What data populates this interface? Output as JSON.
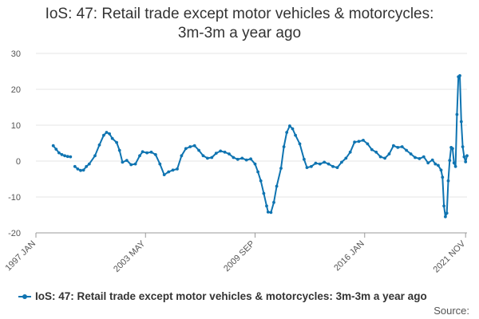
{
  "chart_data": {
    "type": "line",
    "title_lines": [
      "IoS: 47: Retail trade except motor vehicles & motorcycles:",
      "3m-3m a year ago"
    ],
    "x_tick_labels": [
      "1997 JAN",
      "2003 MAY",
      "2009 SEP",
      "2016 JAN",
      "2021 NOV"
    ],
    "y_ticks": [
      30,
      20,
      10,
      0,
      -10,
      -20
    ],
    "ylim": [
      -20,
      30
    ],
    "xlim": [
      "1997-01",
      "2021-12"
    ],
    "grid": "horizontal",
    "legend_position": "bottom",
    "series": [
      {
        "name": "IoS: 47: Retail trade except motor vehicles & motorcycles: 3m-3m a year ago",
        "color": "#0f74b1",
        "segments": [
          [
            [
              "1998-01",
              4.3
            ],
            [
              "1998-03",
              3.3
            ],
            [
              "1998-05",
              2.3
            ],
            [
              "1998-07",
              1.8
            ],
            [
              "1998-09",
              1.5
            ],
            [
              "1998-11",
              1.3
            ],
            [
              "1999-01",
              1.2
            ]
          ],
          [
            [
              "1999-04",
              -1.5
            ],
            [
              "1999-06",
              -2.2
            ],
            [
              "1999-08",
              -2.6
            ],
            [
              "1999-10",
              -2.5
            ],
            [
              "1999-12",
              -1.5
            ],
            [
              "2000-02",
              -0.8
            ],
            [
              "2000-06",
              1.5
            ],
            [
              "2000-09",
              4.5
            ],
            [
              "2000-12",
              7.2
            ],
            [
              "2001-02",
              8.0
            ],
            [
              "2001-04",
              7.6
            ],
            [
              "2001-06",
              6.3
            ],
            [
              "2001-09",
              5.2
            ],
            [
              "2001-11",
              3.0
            ],
            [
              "2002-01",
              -0.3
            ],
            [
              "2002-04",
              0.2
            ],
            [
              "2002-07",
              -1.0
            ],
            [
              "2002-10",
              -0.8
            ],
            [
              "2003-01",
              1.5
            ],
            [
              "2003-03",
              2.6
            ],
            [
              "2003-06",
              2.3
            ],
            [
              "2003-09",
              2.5
            ],
            [
              "2003-12",
              1.8
            ],
            [
              "2004-03",
              -0.8
            ],
            [
              "2004-06",
              -3.8
            ],
            [
              "2004-09",
              -3.0
            ],
            [
              "2004-12",
              -2.5
            ],
            [
              "2005-03",
              -2.2
            ],
            [
              "2005-06",
              1.5
            ],
            [
              "2005-09",
              3.5
            ],
            [
              "2005-12",
              4.0
            ],
            [
              "2006-03",
              4.3
            ],
            [
              "2006-06",
              3.0
            ],
            [
              "2006-09",
              1.5
            ],
            [
              "2006-12",
              0.8
            ],
            [
              "2007-03",
              1.0
            ],
            [
              "2007-06",
              2.2
            ],
            [
              "2007-09",
              2.8
            ],
            [
              "2007-12",
              2.5
            ],
            [
              "2008-03",
              2.0
            ],
            [
              "2008-06",
              1.0
            ],
            [
              "2008-09",
              0.5
            ],
            [
              "2008-12",
              0.8
            ],
            [
              "2009-03",
              0.3
            ],
            [
              "2009-06",
              0.6
            ],
            [
              "2009-09",
              -0.8
            ],
            [
              "2009-11",
              -3.0
            ],
            [
              "2010-01",
              -5.5
            ],
            [
              "2010-03",
              -9.0
            ],
            [
              "2010-05",
              -12.5
            ],
            [
              "2010-06",
              -14.2
            ],
            [
              "2010-08",
              -14.3
            ],
            [
              "2010-10",
              -11.5
            ],
            [
              "2010-12",
              -7.0
            ],
            [
              "2011-03",
              -2.0
            ],
            [
              "2011-05",
              4.0
            ],
            [
              "2011-07",
              8.0
            ],
            [
              "2011-09",
              9.8
            ],
            [
              "2011-11",
              9.0
            ],
            [
              "2012-01",
              7.2
            ],
            [
              "2012-04",
              4.8
            ],
            [
              "2012-07",
              0.5
            ],
            [
              "2012-09",
              -1.8
            ],
            [
              "2012-12",
              -1.5
            ],
            [
              "2013-03",
              -0.6
            ],
            [
              "2013-06",
              -0.8
            ],
            [
              "2013-09",
              -0.3
            ],
            [
              "2013-12",
              -0.8
            ],
            [
              "2014-03",
              -1.5
            ],
            [
              "2014-06",
              -1.8
            ],
            [
              "2014-09",
              -0.3
            ],
            [
              "2014-12",
              0.8
            ],
            [
              "2015-03",
              2.5
            ],
            [
              "2015-06",
              5.3
            ],
            [
              "2015-09",
              5.5
            ],
            [
              "2015-12",
              5.8
            ],
            [
              "2016-03",
              4.8
            ],
            [
              "2016-06",
              3.2
            ],
            [
              "2016-09",
              2.5
            ],
            [
              "2016-12",
              1.2
            ],
            [
              "2017-03",
              0.8
            ],
            [
              "2017-06",
              2.0
            ],
            [
              "2017-09",
              4.3
            ],
            [
              "2017-12",
              3.8
            ],
            [
              "2018-03",
              4.0
            ],
            [
              "2018-06",
              3.0
            ],
            [
              "2018-09",
              2.0
            ],
            [
              "2018-12",
              1.0
            ],
            [
              "2019-03",
              0.7
            ],
            [
              "2019-06",
              1.2
            ],
            [
              "2019-09",
              -0.5
            ],
            [
              "2019-12",
              0.3
            ],
            [
              "2020-02",
              -0.8
            ],
            [
              "2020-04",
              -1.2
            ],
            [
              "2020-06",
              -2.5
            ],
            [
              "2020-07",
              -4.5
            ],
            [
              "2020-08",
              -12.5
            ],
            [
              "2020-09",
              -15.5
            ],
            [
              "2020-10",
              -14.5
            ],
            [
              "2020-11",
              -5.5
            ],
            [
              "2020-12",
              0.2
            ],
            [
              "2021-01",
              3.8
            ],
            [
              "2021-02",
              3.5
            ],
            [
              "2021-03",
              -0.5
            ],
            [
              "2021-04",
              -1.5
            ],
            [
              "2021-05",
              13.0
            ],
            [
              "2021-06",
              23.5
            ],
            [
              "2021-07",
              23.8
            ],
            [
              "2021-08",
              11.0
            ],
            [
              "2021-09",
              4.0
            ],
            [
              "2021-10",
              1.2
            ],
            [
              "2021-11",
              -0.2
            ],
            [
              "2021-12",
              1.5
            ]
          ]
        ]
      }
    ],
    "source_label": "Source:"
  }
}
